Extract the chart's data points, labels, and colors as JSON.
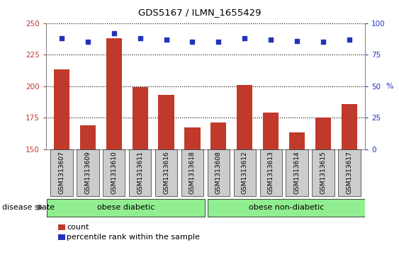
{
  "title": "GDS5167 / ILMN_1655429",
  "samples": [
    "GSM1313607",
    "GSM1313609",
    "GSM1313610",
    "GSM1313611",
    "GSM1313616",
    "GSM1313618",
    "GSM1313608",
    "GSM1313612",
    "GSM1313613",
    "GSM1313614",
    "GSM1313615",
    "GSM1313617"
  ],
  "counts": [
    213,
    169,
    238,
    199,
    193,
    167,
    171,
    201,
    179,
    163,
    175,
    186
  ],
  "percentiles": [
    88,
    85,
    92,
    88,
    87,
    85,
    85,
    88,
    87,
    86,
    85,
    87
  ],
  "ylim_left": [
    150,
    250
  ],
  "ylim_right": [
    0,
    100
  ],
  "yticks_left": [
    150,
    175,
    200,
    225,
    250
  ],
  "yticks_right": [
    0,
    25,
    50,
    75,
    100
  ],
  "bar_color": "#C0392B",
  "dot_color": "#2233BB",
  "grid_color": "#000000",
  "bg_color": "#FFFFFF",
  "tick_bg": "#CCCCCC",
  "group_bg_light": "#90EE90",
  "group_bg_dark": "#66DD66",
  "group1_label": "obese diabetic",
  "group2_label": "obese non-diabetic",
  "group1_count": 6,
  "group2_count": 6,
  "disease_label": "disease state",
  "legend_count": "count",
  "legend_pct": "percentile rank within the sample"
}
